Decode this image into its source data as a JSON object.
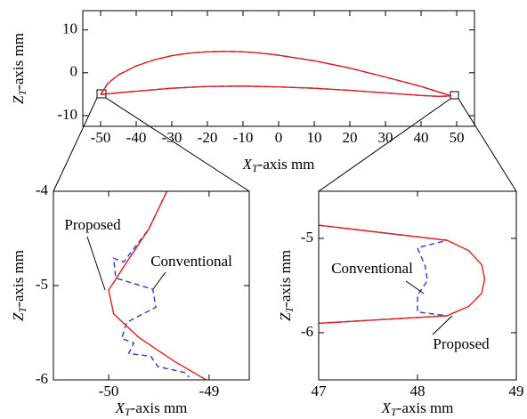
{
  "chart_data": [
    {
      "type": "line",
      "xlabel": {
        "base": "X",
        "sub": "T",
        "rest": "-axis mm"
      },
      "ylabel": {
        "base": "Z",
        "sub": "T",
        "rest": "-axis mm"
      },
      "xlim": [
        -55,
        55
      ],
      "xticks": [
        -50,
        -40,
        -30,
        -20,
        -10,
        0,
        10,
        20,
        30,
        40,
        50
      ],
      "ylim": [
        -12.5,
        14.5
      ],
      "yticks": [
        -10,
        0,
        10
      ],
      "series": [
        {
          "color": "#2a3bd0",
          "line_style": "dashed",
          "x": [
            -50,
            -48,
            -45,
            -40,
            -35,
            -30,
            -25,
            -20,
            -15,
            -10,
            -5,
            0,
            10,
            20,
            30,
            40,
            48.5,
            45,
            40,
            30,
            20,
            10,
            0,
            -10,
            -20,
            -30,
            -40,
            -48,
            -50
          ],
          "y": [
            -5.1,
            -2.5,
            -0.5,
            1.6,
            3,
            4,
            4.6,
            4.9,
            5,
            4.9,
            4.6,
            4.1,
            2.8,
            1.1,
            -1,
            -3.2,
            -5.4,
            -5.5,
            -5.3,
            -4.7,
            -4.1,
            -3.6,
            -3.3,
            -3.1,
            -3.2,
            -3.6,
            -4.3,
            -4.9,
            -5.1
          ]
        },
        {
          "color": "#e0201e",
          "line_style": "solid",
          "x": [
            -50,
            -48,
            -45,
            -40,
            -35,
            -30,
            -25,
            -20,
            -15,
            -10,
            -5,
            0,
            10,
            20,
            30,
            40,
            48.5,
            45,
            40,
            30,
            20,
            10,
            0,
            -10,
            -20,
            -30,
            -40,
            -48,
            -50
          ],
          "y": [
            -5.1,
            -2.5,
            -0.5,
            1.6,
            3,
            4,
            4.6,
            4.9,
            5,
            4.9,
            4.6,
            4.1,
            2.8,
            1.1,
            -1,
            -3.2,
            -5.4,
            -5.5,
            -5.3,
            -4.7,
            -4.1,
            -3.6,
            -3.3,
            -3.1,
            -3.2,
            -3.6,
            -4.3,
            -4.9,
            -5.1
          ]
        }
      ]
    },
    {
      "type": "line",
      "xlabel": {
        "base": "X",
        "sub": "T",
        "rest": "-axis mm"
      },
      "ylabel": {
        "base": "Z",
        "sub": "T",
        "rest": "-axis mm"
      },
      "xlim": [
        -50.55,
        -48.6
      ],
      "xticks": [
        -50,
        -49
      ],
      "ylim": [
        -6,
        -4
      ],
      "yticks": [
        -6,
        -5,
        -4
      ],
      "annotations": [
        "Proposed",
        "Conventional"
      ],
      "series": [
        {
          "color": "#2a3bd0",
          "line_style": "dashed",
          "x": [
            -49.42,
            -49.6,
            -49.85,
            -49.95,
            -49.93,
            -49.56,
            -49.53,
            -49.82,
            -49.87,
            -49.75,
            -49.8,
            -49.58,
            -49.51,
            -49.25,
            -49.2
          ],
          "y": [
            -4.0,
            -4.4,
            -4.75,
            -4.71,
            -4.92,
            -5.04,
            -5.23,
            -5.39,
            -5.56,
            -5.61,
            -5.72,
            -5.75,
            -5.86,
            -5.92,
            -5.97
          ]
        },
        {
          "color": "#e0201e",
          "line_style": "solid",
          "x": [
            -49.42,
            -49.6,
            -49.85,
            -50.0,
            -49.95,
            -49.7,
            -49.35,
            -49.03
          ],
          "y": [
            -4.0,
            -4.4,
            -4.8,
            -5.05,
            -5.3,
            -5.55,
            -5.8,
            -6.0
          ]
        }
      ]
    },
    {
      "type": "line",
      "xlabel": {
        "base": "X",
        "sub": "T",
        "rest": "-axis mm"
      },
      "ylabel": {
        "base": "Z",
        "sub": "T",
        "rest": "-axis mm"
      },
      "xlim": [
        47,
        49
      ],
      "xticks": [
        47,
        48,
        49
      ],
      "ylim": [
        -6.5,
        -4.5
      ],
      "yticks": [
        -6,
        -5
      ],
      "annotations": [
        "Conventional",
        "Proposed"
      ],
      "series": [
        {
          "color": "#2a3bd0",
          "line_style": "dashed",
          "x": [
            47,
            48.3,
            48.0,
            48.08,
            48.1,
            48.0,
            48.0,
            48.3,
            47
          ],
          "y": [
            -4.86,
            -5.02,
            -5.1,
            -5.3,
            -5.45,
            -5.6,
            -5.78,
            -5.82,
            -5.9
          ]
        },
        {
          "color": "#e0201e",
          "line_style": "solid",
          "x": [
            47,
            48.3,
            48.52,
            48.65,
            48.68,
            48.65,
            48.52,
            48.3,
            47
          ],
          "y": [
            -4.86,
            -5.02,
            -5.13,
            -5.28,
            -5.43,
            -5.58,
            -5.72,
            -5.82,
            -5.9
          ]
        }
      ]
    }
  ]
}
